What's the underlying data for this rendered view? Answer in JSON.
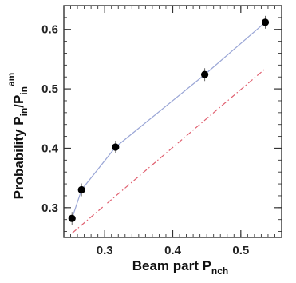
{
  "chart_data": {
    "type": "line",
    "xlabel": {
      "main": "Beam part  P",
      "sub": "nch"
    },
    "ylabel": {
      "main": "Probability   P",
      "sub1": "in",
      "mid": "/P",
      "sub2": "in",
      "sup": "am"
    },
    "xlim": [
      0.24,
      0.56
    ],
    "ylim": [
      0.25,
      0.64
    ],
    "x_ticks": [
      0.3,
      0.4,
      0.5
    ],
    "y_ticks": [
      0.3,
      0.4,
      0.5,
      0.6
    ],
    "x_tick_labels": [
      "0.3",
      "0.4",
      "0.5"
    ],
    "y_tick_labels": [
      "0.3",
      "0.4",
      "0.5",
      "0.6"
    ],
    "grid": false,
    "series": [
      {
        "style": "markers-with-line",
        "color": "#9aa6d6",
        "marker_color": "#000000",
        "x": [
          0.252,
          0.266,
          0.316,
          0.447,
          0.536
        ],
        "y": [
          0.282,
          0.33,
          0.402,
          0.524,
          0.612
        ]
      },
      {
        "style": "dash-dot",
        "color": "#e06070",
        "x": [
          0.252,
          0.536
        ],
        "y": [
          0.257,
          0.534
        ]
      }
    ]
  }
}
